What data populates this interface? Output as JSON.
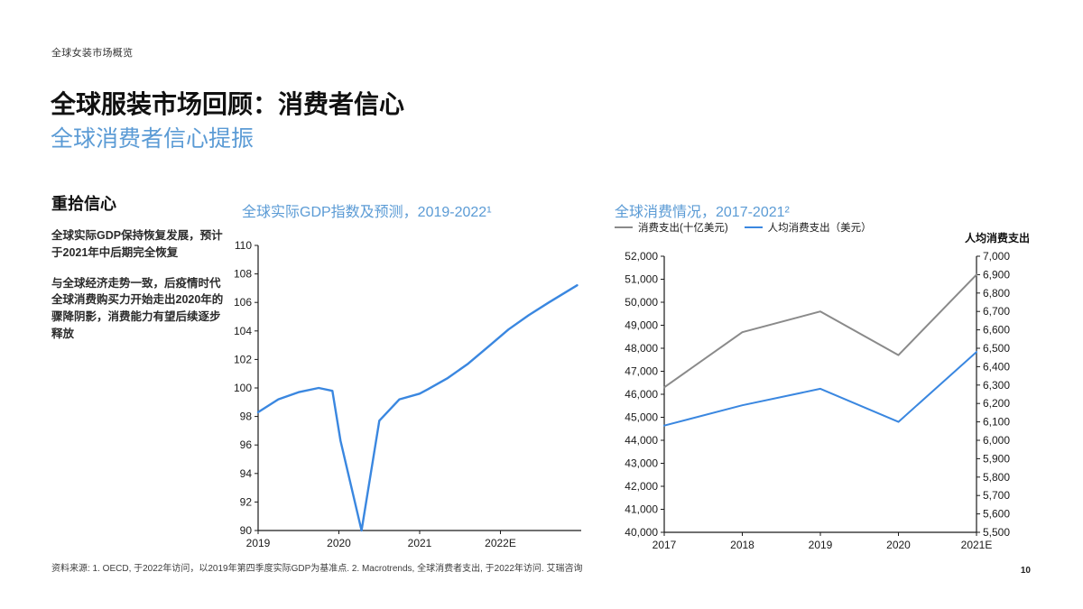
{
  "header": {
    "eyebrow": "全球女装市场概览",
    "title": "全球服装市场回顾：消费者信心",
    "subtitle": "全球消费者信心提振"
  },
  "sidebar": {
    "heading": "重拾信心",
    "paragraphs": [
      "全球实际GDP保持恢复发展，预计于2021年中后期完全恢复",
      "与全球经济走势一致，后疫情时代全球消费购买力开始走出2020年的骤降阴影，消费能力有望后续逐步释放"
    ]
  },
  "footer": {
    "source": "资料来源: 1. OECD, 于2022年访问，以2019年第四季度实际GDP为基准点. 2. Macrotrends, 全球消费者支出, 于2022年访问. 艾瑞咨询",
    "page_number": "10"
  },
  "colors": {
    "accent_blue": "#5b9bd5",
    "line_blue": "#3a87e0",
    "line_gray": "#8a8a8a"
  },
  "chart_data": [
    {
      "type": "line",
      "title": "全球实际GDP指数及预测，2019-2022¹",
      "xlabel": "",
      "ylabel": "",
      "x_ticks": [
        "2019",
        "2020",
        "2021",
        "2022E"
      ],
      "x_tick_positions": [
        2019,
        2020,
        2021,
        2022
      ],
      "x_range": [
        2019,
        2023
      ],
      "y_range": [
        90,
        110
      ],
      "y_tick_step": 2,
      "grid": false,
      "series": [
        {
          "name": "全球实际GDP指数及预测",
          "color": "#3a87e0",
          "points": [
            [
              2019.0,
              98.3
            ],
            [
              2019.25,
              99.2
            ],
            [
              2019.5,
              99.7
            ],
            [
              2019.75,
              100.0
            ],
            [
              2019.92,
              99.8
            ],
            [
              2020.02,
              96.3
            ],
            [
              2020.28,
              90.0
            ],
            [
              2020.5,
              97.7
            ],
            [
              2020.75,
              99.2
            ],
            [
              2021.0,
              99.6
            ],
            [
              2021.1,
              99.9
            ],
            [
              2021.35,
              100.7
            ],
            [
              2021.6,
              101.7
            ],
            [
              2021.85,
              102.9
            ],
            [
              2022.1,
              104.1
            ],
            [
              2022.35,
              105.1
            ],
            [
              2022.6,
              106.0
            ],
            [
              2022.95,
              107.2
            ]
          ]
        }
      ]
    },
    {
      "type": "line",
      "title": "全球消费情况，2017-2021²",
      "right_axis_label": "人均消费支出",
      "x_ticks": [
        "2017",
        "2018",
        "2019",
        "2020",
        "2021E"
      ],
      "x_tick_positions": [
        2017,
        2018,
        2019,
        2020,
        2021
      ],
      "x_range": [
        2017,
        2021
      ],
      "y_left_range": [
        40000,
        52000
      ],
      "y_left_step": 1000,
      "y_right_range": [
        5500,
        7000
      ],
      "y_right_step": 100,
      "grid": false,
      "series": [
        {
          "name": "消费支出(十亿美元)",
          "axis": "left",
          "color": "#8a8a8a",
          "points": [
            [
              2017,
              46300
            ],
            [
              2018,
              48700
            ],
            [
              2019,
              49600
            ],
            [
              2020,
              47700
            ],
            [
              2021,
              51200
            ]
          ]
        },
        {
          "name": "人均消费支出（美元）",
          "axis": "right",
          "color": "#3a87e0",
          "points": [
            [
              2017,
              6080
            ],
            [
              2018,
              6190
            ],
            [
              2019,
              6280
            ],
            [
              2020,
              6100
            ],
            [
              2021,
              6480
            ]
          ]
        }
      ]
    }
  ]
}
